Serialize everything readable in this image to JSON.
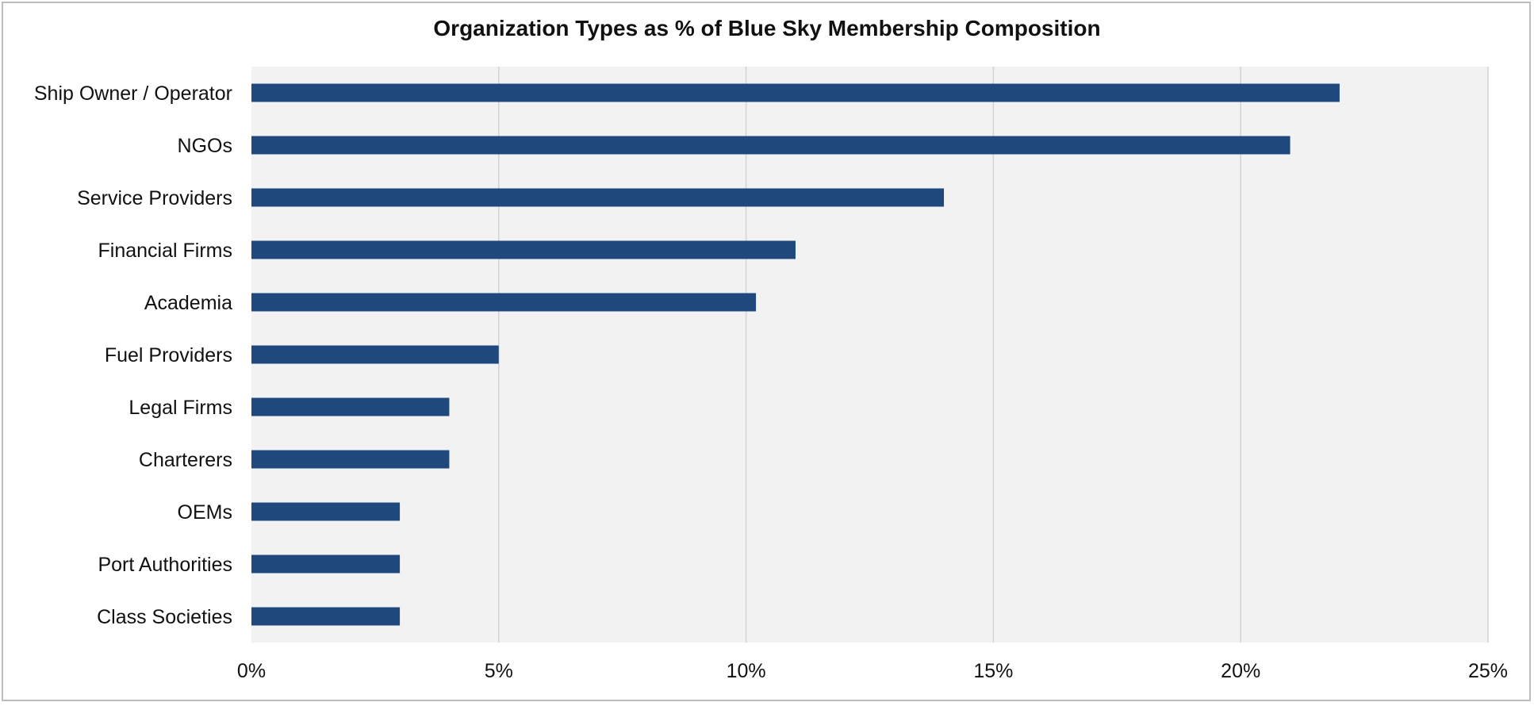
{
  "chart_data": {
    "type": "bar",
    "orientation": "horizontal",
    "title": "Organization Types as % of Blue Sky Membership Composition",
    "xlabel": "",
    "ylabel": "",
    "categories": [
      "Ship Owner / Operator",
      "NGOs",
      "Service Providers",
      "Financial Firms",
      "Academia",
      "Fuel Providers",
      "Legal Firms",
      "Charterers",
      "OEMs",
      "Port Authorities",
      "Class Societies"
    ],
    "values": [
      22,
      21,
      14,
      11,
      10.2,
      5,
      4,
      4,
      3,
      3,
      3
    ],
    "xlim": [
      0,
      25
    ],
    "x_ticks": [
      0,
      5,
      10,
      15,
      20,
      25
    ],
    "x_tick_labels": [
      "0%",
      "5%",
      "10%",
      "15%",
      "20%",
      "25%"
    ],
    "grid": "vertical",
    "legend": "none",
    "colors": {
      "bar": "#1f487c",
      "plot_background": "#f2f2f2",
      "gridline": "#d3d3d3",
      "border": "#bdbdbd"
    }
  }
}
